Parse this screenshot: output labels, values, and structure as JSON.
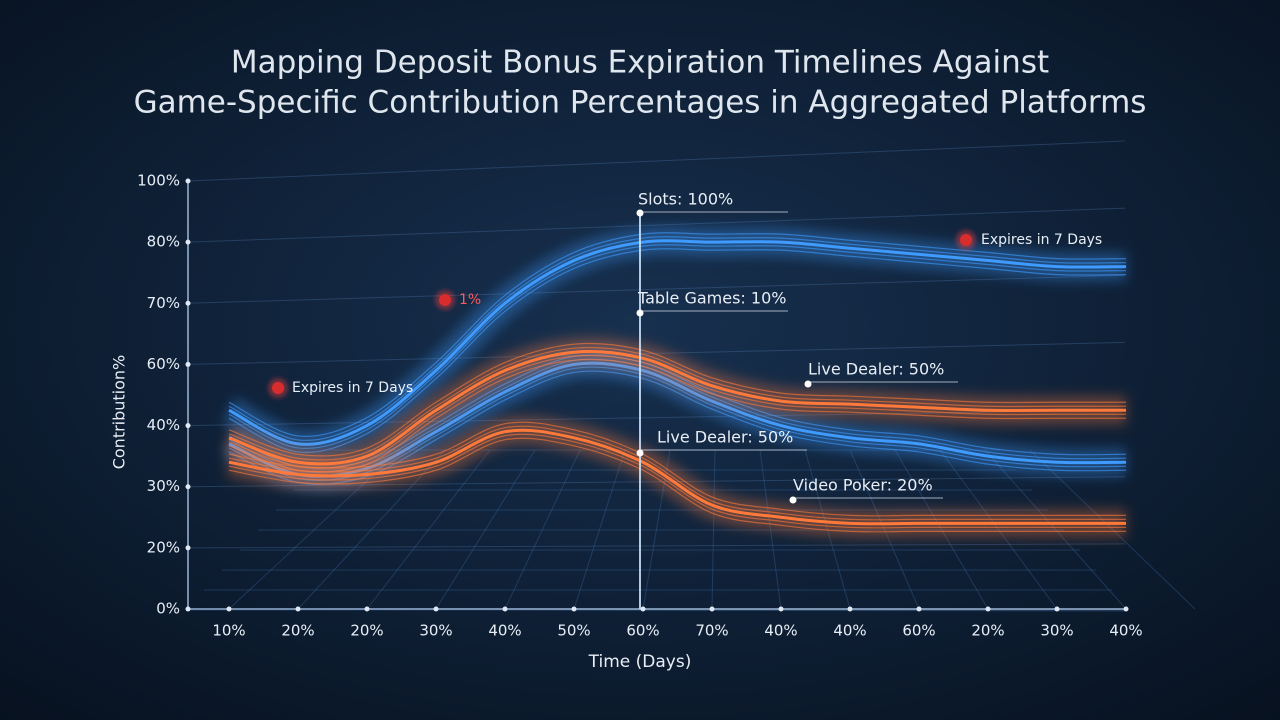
{
  "chart_data": {
    "type": "line",
    "title": [
      "Mapping Deposit Bonus Expiration Timelines Against",
      "Game-Specific Contribution Percentages in Aggregated Platforms"
    ],
    "y_label": "Contribution%",
    "x_label": "Time (Days)",
    "categories": [
      "10%",
      "20%",
      "20%",
      "30%",
      "40%",
      "50%",
      "60%",
      "70%",
      "40%",
      "40%",
      "60%",
      "20%",
      "30%",
      "40%"
    ],
    "yticks": [
      {
        "value": 100,
        "label": "100%"
      },
      {
        "value": 80,
        "label": "80%"
      },
      {
        "value": 70,
        "label": "70%"
      },
      {
        "value": 60,
        "label": "60%"
      },
      {
        "value": 40,
        "label": "40%"
      },
      {
        "value": 30,
        "label": "30%"
      },
      {
        "value": 20,
        "label": "20%"
      },
      {
        "value": 0,
        "label": "0%"
      }
    ],
    "series": [
      {
        "color": "#3f9bff",
        "values": [
          45,
          37,
          40,
          58,
          70,
          77,
          80,
          80,
          80,
          79,
          78,
          77,
          76,
          76
        ]
      },
      {
        "color": "#3f9bff",
        "values": [
          37,
          32,
          33,
          39,
          51,
          60,
          58,
          48,
          40,
          38,
          37,
          35,
          34,
          34
        ]
      },
      {
        "color": "#ff7a3a",
        "values": [
          38,
          34,
          35,
          45,
          58,
          62,
          61,
          53,
          48,
          47,
          46,
          45,
          45,
          45
        ]
      },
      {
        "color": "#ff7a3a",
        "values": [
          34,
          32,
          32,
          34,
          39,
          38,
          34,
          27,
          25,
          24,
          24,
          24,
          24,
          24
        ]
      }
    ],
    "annotations": [
      "Slots: 100%",
      "Table Games: 10%",
      "Live Dealer: 50%",
      "Live Dealer: 50%",
      "Video Poker: 20%"
    ],
    "warnings": [
      "Expires in 7 Days",
      "Expires in 7 Days",
      "1%"
    ],
    "grid": true
  }
}
